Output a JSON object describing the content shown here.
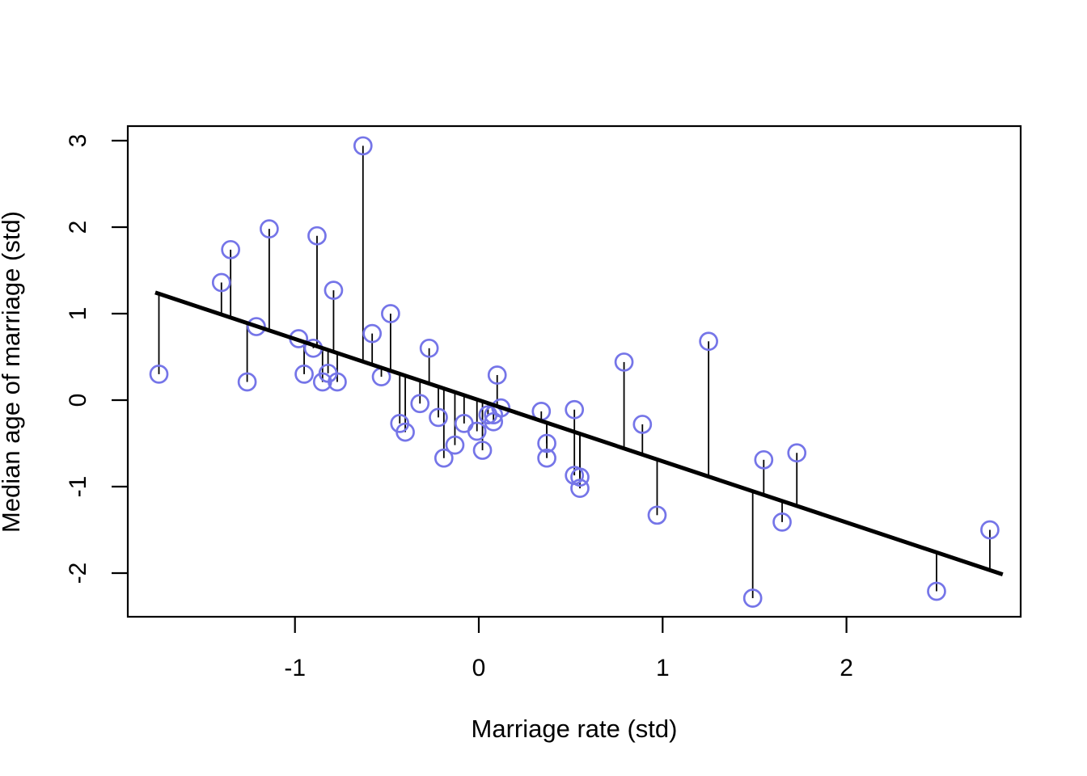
{
  "figure": {
    "background": "#ffffff"
  },
  "chart_data": {
    "type": "scatter",
    "title": "",
    "xlabel": "Marriage rate (std)",
    "ylabel": "Median age of marriage (std)",
    "x_ticks": [
      -1,
      0,
      1,
      2
    ],
    "y_ticks": [
      -2,
      -1,
      0,
      1,
      2,
      3
    ],
    "xlim": [
      -1.91,
      2.95
    ],
    "ylim": [
      -2.51,
      3.17
    ],
    "grid": false,
    "legend": null,
    "points": [
      [
        -1.74,
        0.3
      ],
      [
        -1.4,
        1.36
      ],
      [
        -1.35,
        1.74
      ],
      [
        -1.26,
        0.21
      ],
      [
        -1.21,
        0.85
      ],
      [
        -1.14,
        1.98
      ],
      [
        -0.98,
        0.71
      ],
      [
        -0.95,
        0.3
      ],
      [
        -0.9,
        0.6
      ],
      [
        -0.88,
        1.9
      ],
      [
        -0.85,
        0.21
      ],
      [
        -0.82,
        0.31
      ],
      [
        -0.79,
        1.27
      ],
      [
        -0.77,
        0.21
      ],
      [
        -0.63,
        2.94
      ],
      [
        -0.58,
        0.77
      ],
      [
        -0.53,
        0.27
      ],
      [
        -0.48,
        1.0
      ],
      [
        -0.43,
        -0.27
      ],
      [
        -0.4,
        -0.37
      ],
      [
        -0.32,
        -0.04
      ],
      [
        -0.27,
        0.6
      ],
      [
        -0.22,
        -0.2
      ],
      [
        -0.19,
        -0.67
      ],
      [
        -0.13,
        -0.52
      ],
      [
        -0.08,
        -0.27
      ],
      [
        -0.01,
        -0.36
      ],
      [
        0.02,
        -0.58
      ],
      [
        0.05,
        -0.17
      ],
      [
        0.08,
        -0.17
      ],
      [
        0.08,
        -0.25
      ],
      [
        0.1,
        0.29
      ],
      [
        0.12,
        -0.09
      ],
      [
        0.34,
        -0.13
      ],
      [
        0.37,
        -0.5
      ],
      [
        0.37,
        -0.67
      ],
      [
        0.52,
        -0.11
      ],
      [
        0.52,
        -0.87
      ],
      [
        0.55,
        -0.89
      ],
      [
        0.55,
        -1.02
      ],
      [
        0.79,
        0.44
      ],
      [
        0.89,
        -0.28
      ],
      [
        0.97,
        -1.33
      ],
      [
        1.25,
        0.68
      ],
      [
        1.49,
        -2.29
      ],
      [
        1.55,
        -0.69
      ],
      [
        1.65,
        -1.41
      ],
      [
        1.73,
        -0.61
      ],
      [
        2.49,
        -2.21
      ],
      [
        2.78,
        -1.5
      ]
    ],
    "regression_line": {
      "slope": -0.707,
      "intercept": 0.0,
      "x_start": -1.76,
      "x_end": 2.85
    },
    "residual_segments": true,
    "colors": {
      "point_stroke": "#7575E8",
      "line": "#000000",
      "segment": "#000000",
      "axis": "#000000",
      "tick_label": "#000000"
    },
    "marker": {
      "shape": "open-circle",
      "radius_px": 10.5,
      "stroke_width_px": 2.7
    }
  }
}
